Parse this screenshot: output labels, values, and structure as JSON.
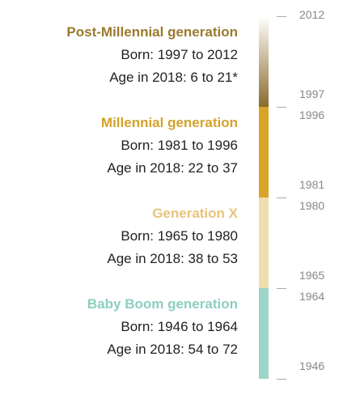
{
  "generations": [
    {
      "name": "Post-Millennial generation",
      "born": "Born: 1997 to 2012",
      "age": "Age in 2018: 6 to 21*",
      "start": 1997,
      "end": 2012,
      "color": "#8a6b2c",
      "name_color": "#9a7a2e"
    },
    {
      "name": "Millennial generation",
      "born": "Born: 1981 to 1996",
      "age": "Age in 2018: 22 to 37",
      "start": 1981,
      "end": 1996,
      "color": "#d9a528",
      "name_color": "#d4a22a"
    },
    {
      "name": "Generation X",
      "born": "Born: 1965 to 1980",
      "age": "Age in 2018: 38 to 53",
      "start": 1965,
      "end": 1980,
      "color": "#efdfae",
      "name_color": "#e8c47a"
    },
    {
      "name": "Baby Boom generation",
      "born": "Born: 1946 to 1964",
      "age": "Age in 2018: 54 to 72",
      "start": 1946,
      "end": 1964,
      "color": "#9dd5c8",
      "name_color": "#8ccfc0"
    }
  ]
}
